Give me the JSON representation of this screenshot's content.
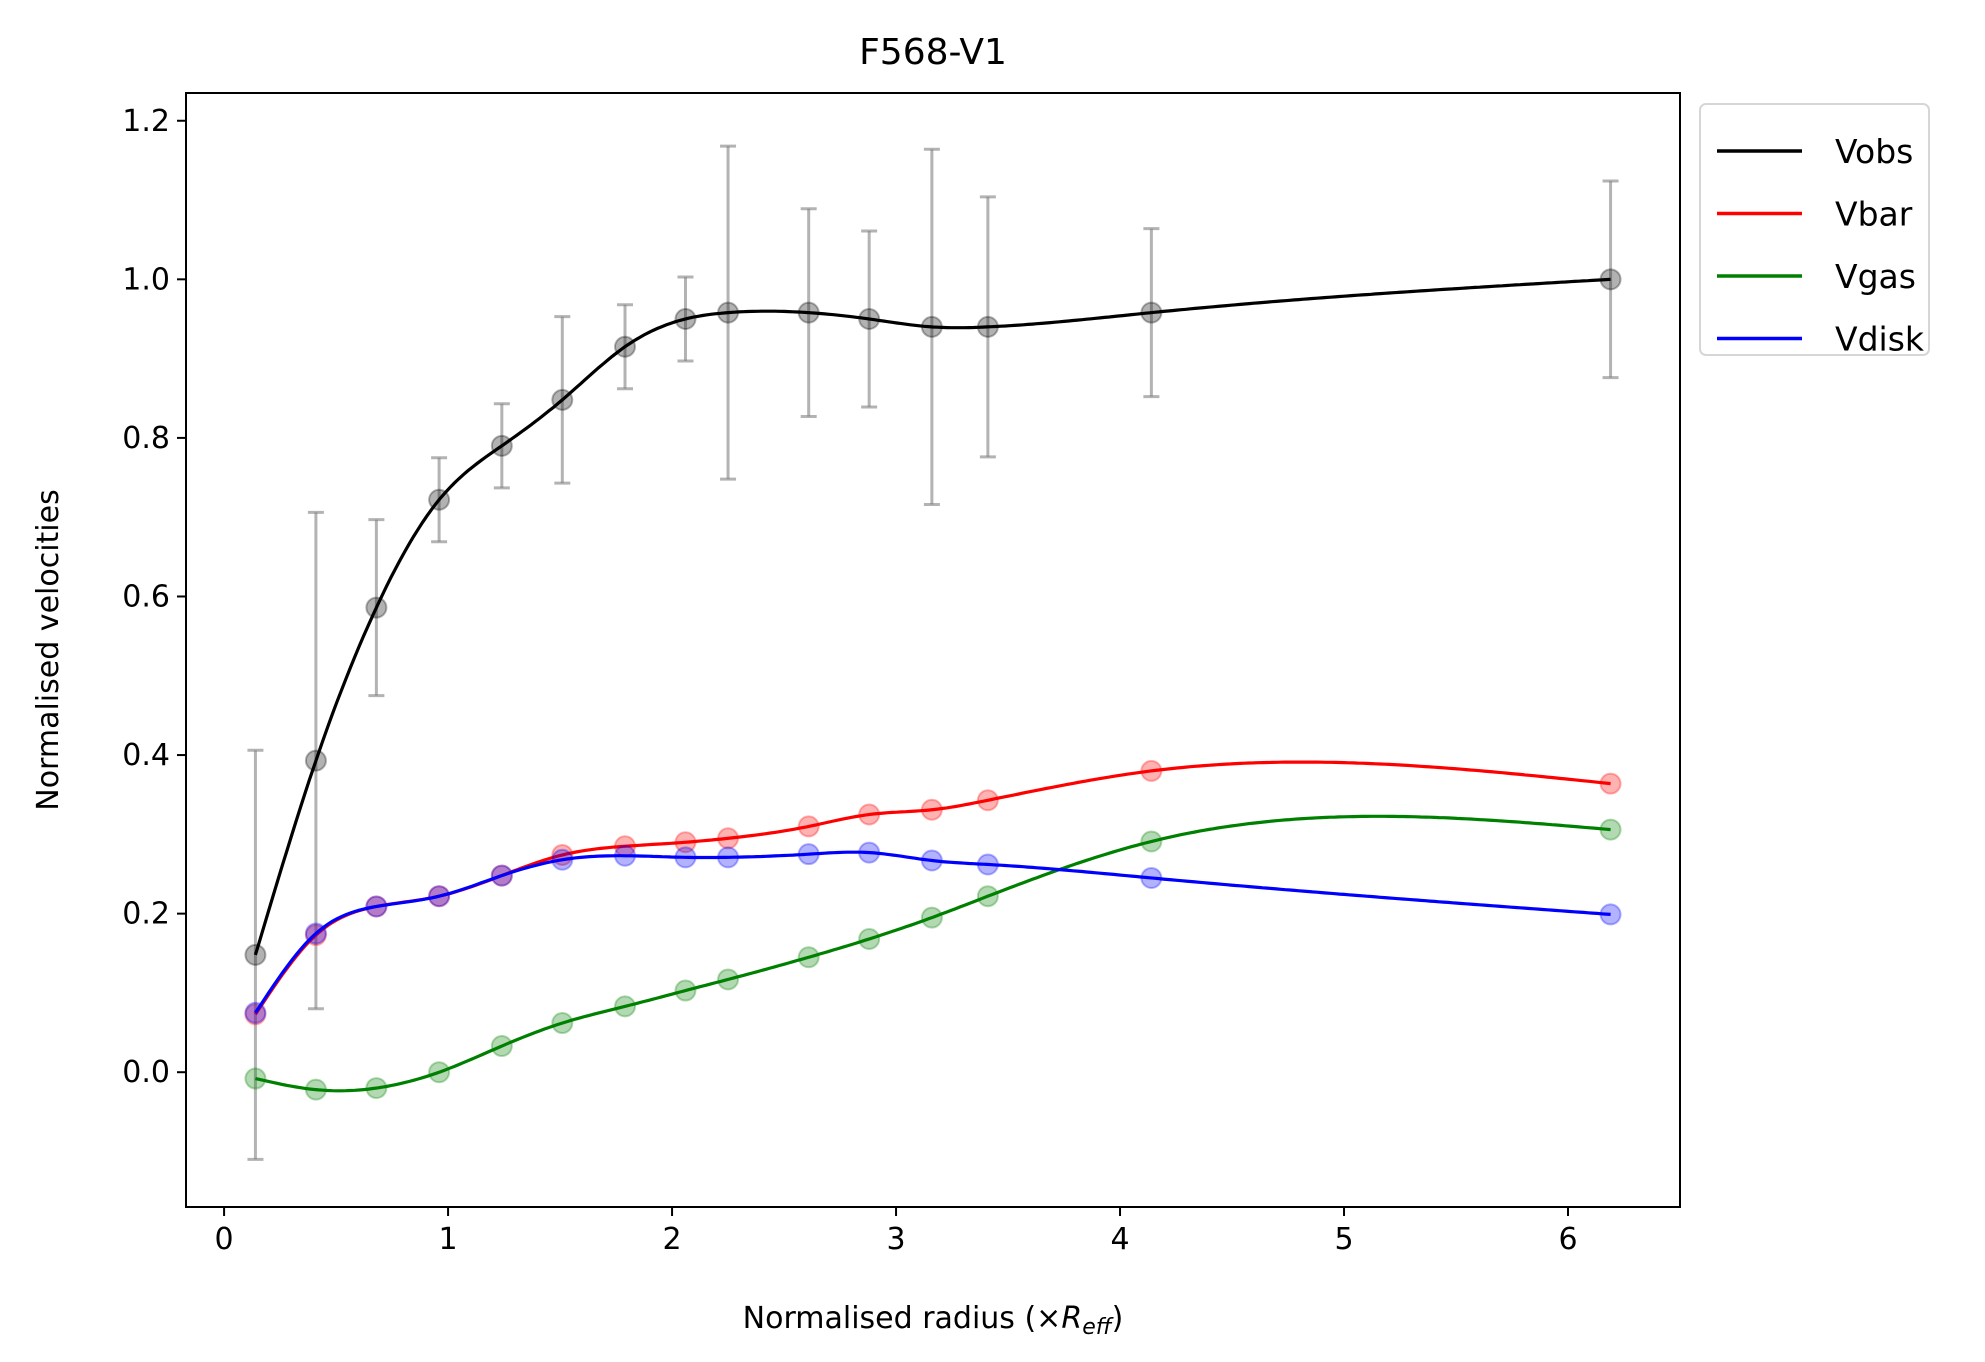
{
  "chart_data": {
    "type": "line",
    "title": "F568-V1",
    "xlabel_prefix": "Normalised radius (×",
    "xlabel_var": "R",
    "xlabel_sub": "eff",
    "xlabel_suffix": ")",
    "ylabel": "Normalised velocities",
    "xlim": [
      -0.17,
      6.5
    ],
    "ylim": [
      -0.17,
      1.235
    ],
    "xticks": [
      0,
      1,
      2,
      3,
      4,
      5,
      6
    ],
    "yticks": [
      0.0,
      0.2,
      0.4,
      0.6,
      0.8,
      1.0,
      1.2
    ],
    "grid": false,
    "legend_position": "outside-top-right",
    "x": [
      0.14,
      0.41,
      0.68,
      0.96,
      1.24,
      1.51,
      1.79,
      2.06,
      2.25,
      2.61,
      2.88,
      3.16,
      3.41,
      4.14,
      6.19
    ],
    "series": [
      {
        "name": "Vobs",
        "color": "#000000",
        "values": [
          0.148,
          0.393,
          0.586,
          0.722,
          0.79,
          0.848,
          0.915,
          0.95,
          0.958,
          0.958,
          0.95,
          0.94,
          0.94,
          0.958,
          1.0
        ],
        "errors": [
          0.258,
          0.313,
          0.111,
          0.053,
          0.053,
          0.105,
          0.053,
          0.053,
          0.21,
          0.131,
          0.111,
          0.224,
          0.164,
          0.106,
          0.124
        ]
      },
      {
        "name": "Vbar",
        "color": "#ff0000",
        "values": [
          0.073,
          0.173,
          0.209,
          0.222,
          0.248,
          0.274,
          0.285,
          0.29,
          0.295,
          0.31,
          0.325,
          0.331,
          0.343,
          0.38,
          0.364
        ]
      },
      {
        "name": "Vgas",
        "color": "#008000",
        "values": [
          -0.008,
          -0.022,
          -0.02,
          0.0,
          0.033,
          0.062,
          0.083,
          0.103,
          0.117,
          0.145,
          0.168,
          0.195,
          0.222,
          0.291,
          0.306
        ]
      },
      {
        "name": "Vdisk",
        "color": "#0000ff",
        "values": [
          0.075,
          0.175,
          0.209,
          0.222,
          0.248,
          0.268,
          0.273,
          0.271,
          0.271,
          0.275,
          0.277,
          0.267,
          0.262,
          0.245,
          0.199
        ]
      }
    ]
  }
}
